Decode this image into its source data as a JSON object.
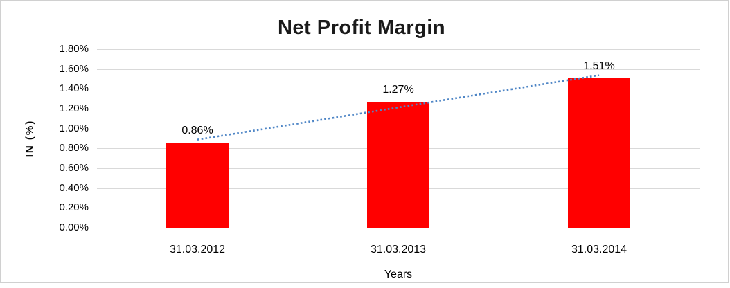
{
  "frame": {
    "border_color": "#d0d0d0",
    "background": "#ffffff"
  },
  "chart_data": {
    "type": "bar",
    "title": "Net Profit Margin",
    "categories": [
      "31.03.2012",
      "31.03.2013",
      "31.03.2014"
    ],
    "values": [
      0.86,
      1.27,
      1.51
    ],
    "data_labels": [
      "0.86%",
      "1.27%",
      "1.51%"
    ],
    "xlabel": "Years",
    "ylabel": "IN (%)",
    "ylim": [
      0,
      1.8
    ],
    "ytick_step": 0.2,
    "ytick_labels": [
      "1.80%",
      "1.60%",
      "1.40%",
      "1.20%",
      "1.00%",
      "0.80%",
      "0.60%",
      "0.40%",
      "0.20%",
      "0.00%"
    ],
    "grid": true,
    "legend": "none",
    "bar_color": "#ff0000",
    "gridline_color": "#d9d9d9",
    "axis_text_color": "#000000",
    "title_color": "#1a1a1a",
    "trendline": {
      "type": "linear",
      "style": "dotted",
      "color": "#4f86c6",
      "start_value": 0.888,
      "end_value": 1.538
    }
  }
}
